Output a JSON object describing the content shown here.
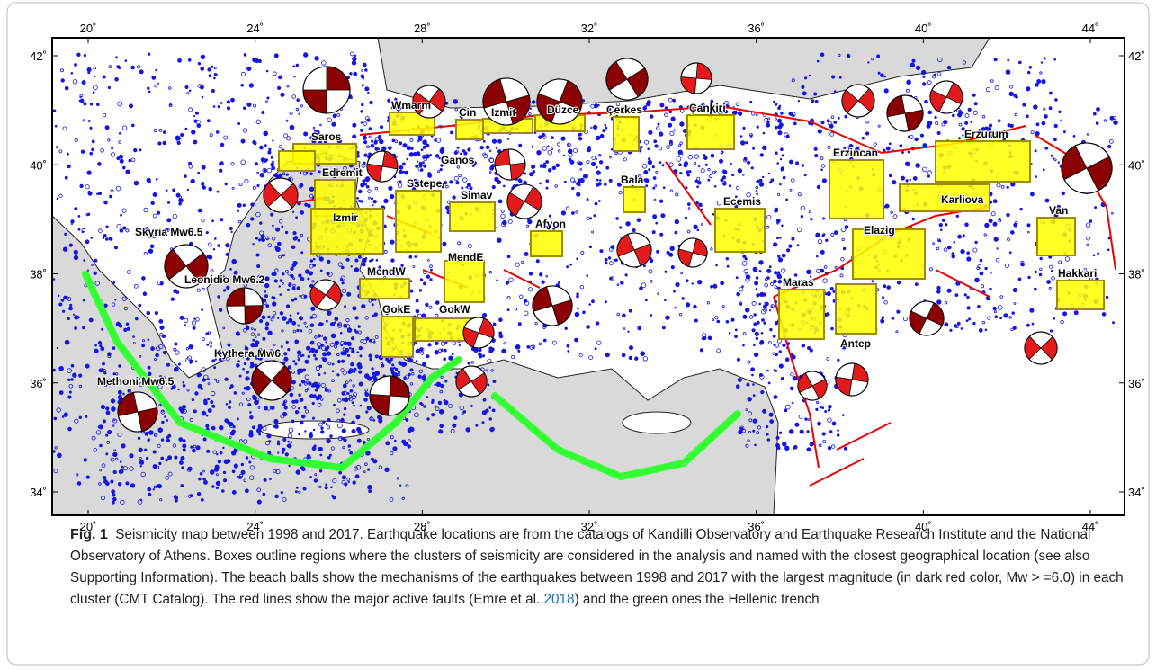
{
  "figure": {
    "lon_ticks": [
      "20˚",
      "24˚",
      "28˚",
      "32˚",
      "36˚",
      "40˚",
      "44˚"
    ],
    "lat_ticks": [
      "42˚",
      "40˚",
      "38˚",
      "36˚",
      "34˚"
    ],
    "regions": [
      "Wmarm",
      "Cin",
      "Izmit",
      "Düzce",
      "Çerkes",
      "Çankiri",
      "Saros",
      "Ganos",
      "Edremit",
      "Izmir",
      "Sstepe",
      "Simav",
      "Bala",
      "Ecemis",
      "Erzincan",
      "Erzurum",
      "Karliova",
      "Elazig",
      "Van",
      "Hakkari",
      "Afyon",
      "MendE",
      "MendW",
      "GokE",
      "GokW",
      "Maras",
      "Antep"
    ],
    "events": [
      "Skyria Mw6.5",
      "Leonidio Mw6.2",
      "Kythera Mw6.",
      "Methoni Mw6.5"
    ]
  },
  "caption": {
    "label": "Fig. 1",
    "text": "Seismicity map between 1998 and 2017. Earthquake locations are from the catalogs of Kandilli Observatory and Earthquake Research Institute and the National Observatory of Athens. Boxes outline regions where the clusters of seismicity are considered in the analysis and named with the closest geographical location (see also Supporting Information). The beach balls show the mechanisms of the earthquakes between 1998 and 2017 with the largest magnitude (in dark red color, Mw > =6.0) in each cluster (CMT Catalog). The red lines show the major active faults (Emre et al. ",
    "citation": "2018",
    "text_end": ") and the green ones the Hellenic trench"
  }
}
